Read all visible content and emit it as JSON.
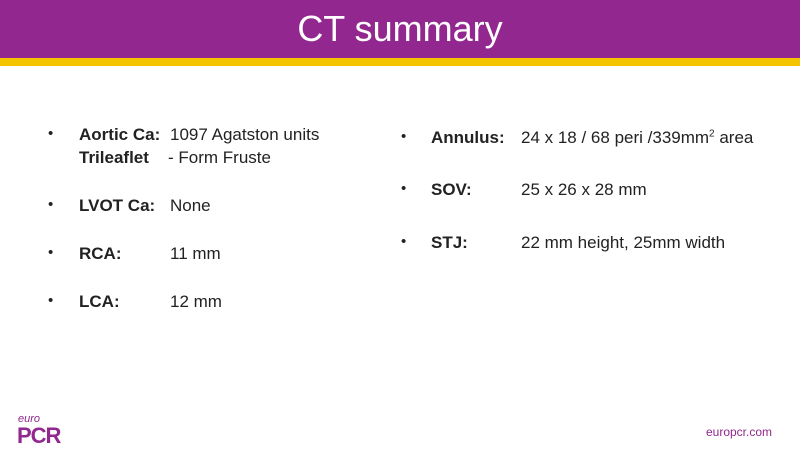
{
  "header": {
    "title": "CT summary"
  },
  "left_items": [
    {
      "label": "Aortic Ca:",
      "value": "1097 Agatston units",
      "line2_label": "Trileaflet",
      "line2_value": "- Form Fruste"
    },
    {
      "label": "LVOT Ca:",
      "value": "None"
    },
    {
      "label": "RCA:",
      "value": "11 mm"
    },
    {
      "label": "LCA:",
      "value": "12 mm"
    }
  ],
  "right_items": [
    {
      "label": "Annulus:",
      "value": "24 x 18 / 68 peri /339mm",
      "superscript": "2",
      "value_end": "area"
    },
    {
      "label": "SOV:",
      "value": "25 x 26 x 28 mm"
    },
    {
      "label": "STJ:",
      "value": "22 mm height, 25mm width"
    }
  ],
  "footer": {
    "logo_small": "euro",
    "logo_big": "PCR",
    "url": "europcr.com"
  }
}
